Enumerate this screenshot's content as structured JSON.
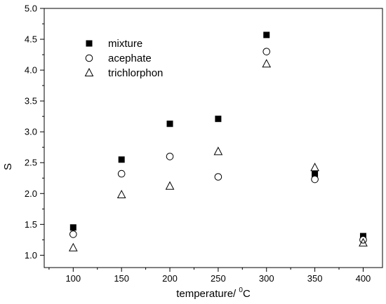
{
  "chart_data": {
    "type": "scatter",
    "title": "",
    "xlabel": "temperature/ ",
    "xlabel_sup": "0",
    "xlabel_unit": "C",
    "ylabel": "S",
    "xlim": [
      70,
      420
    ],
    "ylim": [
      0.8,
      5.0
    ],
    "xticks": [
      100,
      150,
      200,
      250,
      300,
      350,
      400
    ],
    "yticks": [
      1.0,
      1.5,
      2.0,
      2.5,
      3.0,
      3.5,
      4.0,
      4.5,
      5.0
    ],
    "ytick_labels": [
      "1.0",
      "1.5",
      "2.0",
      "2.5",
      "3.0",
      "3.5",
      "4.0",
      "4.5",
      "5.0"
    ],
    "legend_position": "top-left",
    "grid": false,
    "x": [
      100,
      150,
      200,
      250,
      300,
      350,
      400
    ],
    "series": [
      {
        "name": "mixture",
        "marker": "filled-square",
        "values": [
          1.45,
          2.55,
          3.13,
          3.21,
          4.57,
          2.32,
          1.31
        ]
      },
      {
        "name": "acephate",
        "marker": "open-circle",
        "values": [
          1.34,
          2.32,
          2.6,
          2.27,
          4.3,
          2.23,
          1.25
        ]
      },
      {
        "name": "trichlorphon",
        "marker": "open-triangle",
        "values": [
          1.12,
          1.98,
          2.12,
          2.68,
          4.1,
          2.42,
          1.2
        ]
      }
    ]
  }
}
